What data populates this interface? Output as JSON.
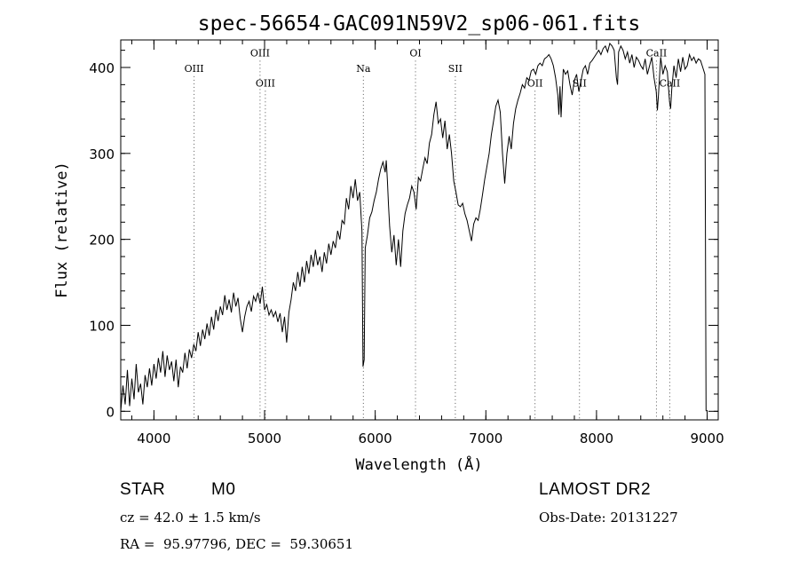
{
  "chart_data": {
    "type": "line",
    "title": "spec-56654-GAC091N59V2_sp06-061.fits",
    "xlabel": "Wavelength (Å)",
    "ylabel": "Flux (relative)",
    "xlim": [
      3700,
      9100
    ],
    "ylim": [
      -10,
      432
    ],
    "xticks": [
      4000,
      5000,
      6000,
      7000,
      8000,
      9000
    ],
    "yticks": [
      0,
      100,
      200,
      300,
      400
    ],
    "x_minor_step": 200,
    "y_minor_step": 20,
    "grid": false,
    "line_color": "#000000",
    "spectrum": [
      [
        3700,
        0
      ],
      [
        3720,
        30
      ],
      [
        3740,
        8
      ],
      [
        3760,
        48
      ],
      [
        3780,
        6
      ],
      [
        3800,
        38
      ],
      [
        3820,
        14
      ],
      [
        3840,
        55
      ],
      [
        3860,
        22
      ],
      [
        3880,
        32
      ],
      [
        3900,
        8
      ],
      [
        3920,
        42
      ],
      [
        3940,
        28
      ],
      [
        3960,
        50
      ],
      [
        3980,
        30
      ],
      [
        4000,
        55
      ],
      [
        4020,
        38
      ],
      [
        4040,
        62
      ],
      [
        4060,
        45
      ],
      [
        4080,
        70
      ],
      [
        4100,
        40
      ],
      [
        4120,
        65
      ],
      [
        4140,
        48
      ],
      [
        4160,
        58
      ],
      [
        4180,
        35
      ],
      [
        4200,
        60
      ],
      [
        4220,
        28
      ],
      [
        4240,
        52
      ],
      [
        4260,
        45
      ],
      [
        4280,
        68
      ],
      [
        4300,
        50
      ],
      [
        4320,
        72
      ],
      [
        4340,
        62
      ],
      [
        4360,
        78
      ],
      [
        4380,
        70
      ],
      [
        4400,
        92
      ],
      [
        4420,
        76
      ],
      [
        4440,
        95
      ],
      [
        4460,
        84
      ],
      [
        4480,
        102
      ],
      [
        4500,
        88
      ],
      [
        4520,
        110
      ],
      [
        4540,
        95
      ],
      [
        4560,
        118
      ],
      [
        4580,
        105
      ],
      [
        4600,
        122
      ],
      [
        4620,
        112
      ],
      [
        4640,
        135
      ],
      [
        4660,
        118
      ],
      [
        4680,
        130
      ],
      [
        4700,
        115
      ],
      [
        4720,
        138
      ],
      [
        4740,
        122
      ],
      [
        4760,
        132
      ],
      [
        4780,
        108
      ],
      [
        4800,
        92
      ],
      [
        4820,
        110
      ],
      [
        4840,
        122
      ],
      [
        4860,
        128
      ],
      [
        4880,
        116
      ],
      [
        4900,
        134
      ],
      [
        4920,
        128
      ],
      [
        4940,
        138
      ],
      [
        4960,
        125
      ],
      [
        4980,
        145
      ],
      [
        5000,
        118
      ],
      [
        5020,
        124
      ],
      [
        5040,
        112
      ],
      [
        5060,
        118
      ],
      [
        5080,
        110
      ],
      [
        5100,
        116
      ],
      [
        5120,
        104
      ],
      [
        5140,
        114
      ],
      [
        5160,
        92
      ],
      [
        5180,
        110
      ],
      [
        5200,
        80
      ],
      [
        5220,
        115
      ],
      [
        5240,
        130
      ],
      [
        5260,
        150
      ],
      [
        5280,
        140
      ],
      [
        5300,
        162
      ],
      [
        5320,
        145
      ],
      [
        5340,
        168
      ],
      [
        5360,
        150
      ],
      [
        5380,
        175
      ],
      [
        5400,
        160
      ],
      [
        5420,
        182
      ],
      [
        5440,
        168
      ],
      [
        5460,
        188
      ],
      [
        5480,
        170
      ],
      [
        5500,
        180
      ],
      [
        5520,
        162
      ],
      [
        5540,
        185
      ],
      [
        5560,
        172
      ],
      [
        5580,
        195
      ],
      [
        5600,
        182
      ],
      [
        5620,
        198
      ],
      [
        5640,
        190
      ],
      [
        5660,
        210
      ],
      [
        5680,
        200
      ],
      [
        5700,
        222
      ],
      [
        5720,
        218
      ],
      [
        5740,
        248
      ],
      [
        5760,
        235
      ],
      [
        5780,
        262
      ],
      [
        5800,
        248
      ],
      [
        5820,
        270
      ],
      [
        5840,
        245
      ],
      [
        5860,
        255
      ],
      [
        5880,
        210
      ],
      [
        5890,
        52
      ],
      [
        5900,
        60
      ],
      [
        5910,
        190
      ],
      [
        5930,
        205
      ],
      [
        5950,
        225
      ],
      [
        5970,
        232
      ],
      [
        5990,
        245
      ],
      [
        6010,
        255
      ],
      [
        6030,
        270
      ],
      [
        6050,
        282
      ],
      [
        6070,
        290
      ],
      [
        6090,
        278
      ],
      [
        6100,
        292
      ],
      [
        6110,
        268
      ],
      [
        6120,
        240
      ],
      [
        6130,
        215
      ],
      [
        6150,
        185
      ],
      [
        6170,
        205
      ],
      [
        6190,
        170
      ],
      [
        6210,
        200
      ],
      [
        6230,
        168
      ],
      [
        6250,
        210
      ],
      [
        6270,
        230
      ],
      [
        6290,
        240
      ],
      [
        6310,
        248
      ],
      [
        6330,
        262
      ],
      [
        6350,
        255
      ],
      [
        6370,
        235
      ],
      [
        6390,
        272
      ],
      [
        6410,
        268
      ],
      [
        6430,
        282
      ],
      [
        6450,
        295
      ],
      [
        6470,
        288
      ],
      [
        6490,
        312
      ],
      [
        6510,
        322
      ],
      [
        6530,
        345
      ],
      [
        6550,
        360
      ],
      [
        6570,
        335
      ],
      [
        6590,
        340
      ],
      [
        6610,
        318
      ],
      [
        6630,
        338
      ],
      [
        6650,
        305
      ],
      [
        6670,
        322
      ],
      [
        6690,
        300
      ],
      [
        6710,
        268
      ],
      [
        6730,
        255
      ],
      [
        6750,
        240
      ],
      [
        6770,
        238
      ],
      [
        6790,
        242
      ],
      [
        6810,
        230
      ],
      [
        6830,
        222
      ],
      [
        6850,
        210
      ],
      [
        6870,
        198
      ],
      [
        6890,
        218
      ],
      [
        6910,
        225
      ],
      [
        6930,
        222
      ],
      [
        6950,
        235
      ],
      [
        6970,
        252
      ],
      [
        6990,
        270
      ],
      [
        7010,
        285
      ],
      [
        7030,
        300
      ],
      [
        7050,
        322
      ],
      [
        7070,
        338
      ],
      [
        7090,
        355
      ],
      [
        7110,
        362
      ],
      [
        7130,
        348
      ],
      [
        7150,
        300
      ],
      [
        7170,
        265
      ],
      [
        7190,
        300
      ],
      [
        7210,
        320
      ],
      [
        7230,
        305
      ],
      [
        7250,
        335
      ],
      [
        7270,
        352
      ],
      [
        7290,
        362
      ],
      [
        7310,
        370
      ],
      [
        7330,
        380
      ],
      [
        7350,
        376
      ],
      [
        7370,
        388
      ],
      [
        7390,
        385
      ],
      [
        7410,
        396
      ],
      [
        7430,
        398
      ],
      [
        7450,
        392
      ],
      [
        7470,
        402
      ],
      [
        7490,
        405
      ],
      [
        7510,
        402
      ],
      [
        7530,
        410
      ],
      [
        7550,
        412
      ],
      [
        7570,
        415
      ],
      [
        7590,
        410
      ],
      [
        7610,
        402
      ],
      [
        7630,
        388
      ],
      [
        7650,
        368
      ],
      [
        7660,
        345
      ],
      [
        7670,
        378
      ],
      [
        7680,
        342
      ],
      [
        7690,
        372
      ],
      [
        7700,
        398
      ],
      [
        7720,
        392
      ],
      [
        7740,
        396
      ],
      [
        7760,
        380
      ],
      [
        7780,
        368
      ],
      [
        7800,
        385
      ],
      [
        7820,
        392
      ],
      [
        7840,
        372
      ],
      [
        7860,
        385
      ],
      [
        7880,
        398
      ],
      [
        7900,
        402
      ],
      [
        7920,
        392
      ],
      [
        7940,
        405
      ],
      [
        7960,
        408
      ],
      [
        7980,
        412
      ],
      [
        8000,
        416
      ],
      [
        8020,
        420
      ],
      [
        8040,
        415
      ],
      [
        8060,
        422
      ],
      [
        8080,
        425
      ],
      [
        8100,
        418
      ],
      [
        8120,
        428
      ],
      [
        8140,
        425
      ],
      [
        8160,
        420
      ],
      [
        8180,
        388
      ],
      [
        8190,
        380
      ],
      [
        8200,
        418
      ],
      [
        8220,
        425
      ],
      [
        8240,
        420
      ],
      [
        8260,
        410
      ],
      [
        8280,
        418
      ],
      [
        8300,
        405
      ],
      [
        8320,
        415
      ],
      [
        8340,
        400
      ],
      [
        8360,
        412
      ],
      [
        8380,
        408
      ],
      [
        8400,
        402
      ],
      [
        8420,
        398
      ],
      [
        8440,
        410
      ],
      [
        8460,
        392
      ],
      [
        8480,
        402
      ],
      [
        8500,
        412
      ],
      [
        8520,
        388
      ],
      [
        8540,
        372
      ],
      [
        8550,
        350
      ],
      [
        8560,
        368
      ],
      [
        8580,
        412
      ],
      [
        8600,
        392
      ],
      [
        8620,
        402
      ],
      [
        8640,
        395
      ],
      [
        8660,
        360
      ],
      [
        8670,
        352
      ],
      [
        8680,
        375
      ],
      [
        8700,
        402
      ],
      [
        8720,
        388
      ],
      [
        8740,
        410
      ],
      [
        8760,
        395
      ],
      [
        8780,
        412
      ],
      [
        8800,
        398
      ],
      [
        8820,
        402
      ],
      [
        8840,
        415
      ],
      [
        8860,
        408
      ],
      [
        8880,
        412
      ],
      [
        8900,
        405
      ],
      [
        8920,
        410
      ],
      [
        8940,
        408
      ],
      [
        8960,
        400
      ],
      [
        8980,
        392
      ],
      [
        8990,
        0
      ]
    ],
    "annotations": [
      {
        "label": "OIII",
        "x": 4363,
        "label_y": 395
      },
      {
        "label": "OIII",
        "x": 4959,
        "label_y": 413
      },
      {
        "label": "OIII",
        "x": 5007,
        "label_y": 378
      },
      {
        "label": "Na",
        "x": 5893,
        "label_y": 395
      },
      {
        "label": "OI",
        "x": 6364,
        "label_y": 413
      },
      {
        "label": "SII",
        "x": 6724,
        "label_y": 395
      },
      {
        "label": "OII",
        "x": 7444,
        "label_y": 378
      },
      {
        "label": "SII",
        "x": 7846,
        "label_y": 378
      },
      {
        "label": "CaII",
        "x": 8542,
        "label_y": 413
      },
      {
        "label": "CaII",
        "x": 8662,
        "label_y": 378
      }
    ]
  },
  "info": {
    "object_class": "STAR",
    "subclass": "M0",
    "survey": "LAMOST DR2",
    "redshift_line": "cz = 42.0 ± 1.5 km/s",
    "obs_date_line": "Obs-Date: 20131227",
    "coords_line": "RA =  95.97796, DEC =  59.30651"
  }
}
